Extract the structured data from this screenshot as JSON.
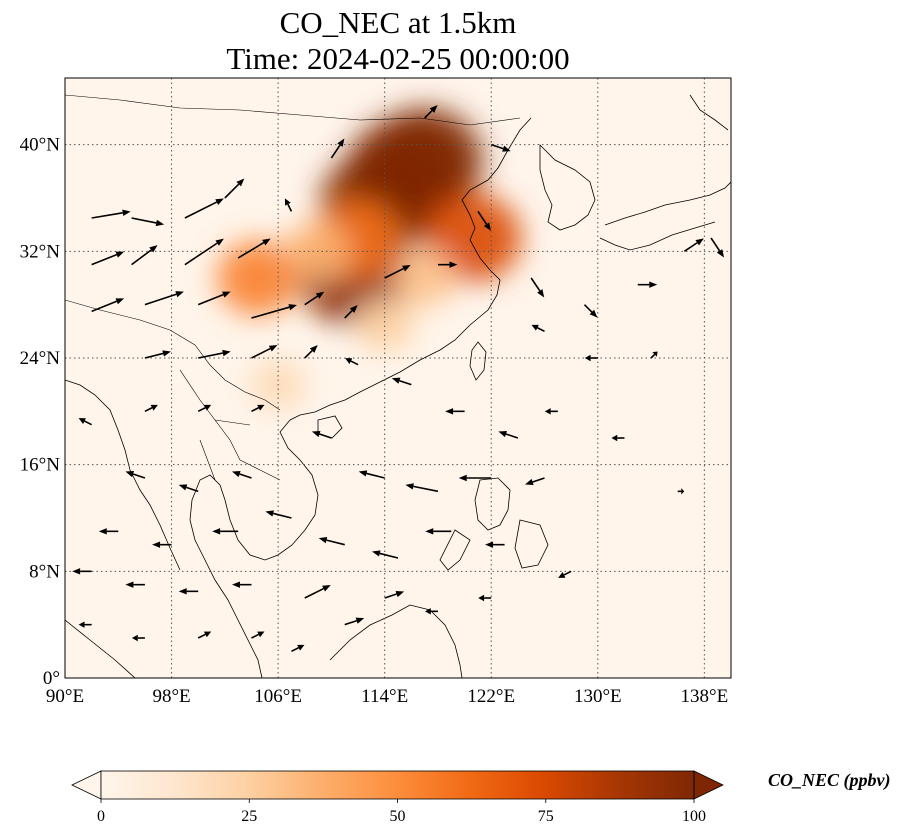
{
  "title": {
    "line1": "CO_NEC at 1.5km",
    "line2": "Time: 2024-02-25 00:00:00"
  },
  "map": {
    "projection": "PlateCarree",
    "lon_range": [
      90,
      140
    ],
    "lat_range": [
      0,
      45
    ],
    "x_ticks": [
      {
        "value": 90,
        "label": "90°E"
      },
      {
        "value": 98,
        "label": "98°E"
      },
      {
        "value": 106,
        "label": "106°E"
      },
      {
        "value": 114,
        "label": "114°E"
      },
      {
        "value": 122,
        "label": "122°E"
      },
      {
        "value": 130,
        "label": "130°E"
      },
      {
        "value": 138,
        "label": "138°E"
      }
    ],
    "y_ticks": [
      {
        "value": 0,
        "label": "0°"
      },
      {
        "value": 8,
        "label": "8°N"
      },
      {
        "value": 16,
        "label": "16°N"
      },
      {
        "value": 24,
        "label": "24°N"
      },
      {
        "value": 32,
        "label": "32°N"
      },
      {
        "value": 40,
        "label": "40°N"
      }
    ],
    "gridlines": "dotted",
    "field": "CO_NEC",
    "hotspots": [
      {
        "lon": 113.5,
        "lat": 35.5,
        "value": 100
      },
      {
        "lon": 115.5,
        "lat": 38.0,
        "value": 100
      },
      {
        "lon": 117.0,
        "lat": 38.8,
        "value": 100
      },
      {
        "lon": 111.7,
        "lat": 30.3,
        "value": 95
      },
      {
        "lon": 120.6,
        "lat": 33.0,
        "value": 75
      },
      {
        "lon": 104.5,
        "lat": 30.0,
        "value": 55
      },
      {
        "lon": 112.0,
        "lat": 33.0,
        "value": 60
      },
      {
        "lon": 109.0,
        "lat": 32.0,
        "value": 35
      },
      {
        "lon": 117.0,
        "lat": 30.0,
        "value": 30
      },
      {
        "lon": 114.0,
        "lat": 26.5,
        "value": 25
      },
      {
        "lon": 106.0,
        "lat": 22.0,
        "value": 20
      }
    ]
  },
  "colorbar": {
    "label": "CO_NEC (ppbv)",
    "min": 0,
    "max": 100,
    "extend": "both",
    "ticks": [
      {
        "value": 0,
        "label": "0"
      },
      {
        "value": 25,
        "label": "25"
      },
      {
        "value": 50,
        "label": "50"
      },
      {
        "value": 75,
        "label": "75"
      },
      {
        "value": 100,
        "label": "100"
      }
    ],
    "colormap": [
      "#fff5eb",
      "#fee6ce",
      "#fdd0a2",
      "#fdae6b",
      "#fd8d3c",
      "#f16913",
      "#d94801",
      "#a63603",
      "#7f2704"
    ]
  },
  "wind_vectors": [
    {
      "lon": 92,
      "lat": 34.5,
      "u": 6,
      "v": 1
    },
    {
      "lon": 95,
      "lat": 34.5,
      "u": 5,
      "v": -1
    },
    {
      "lon": 99,
      "lat": 34.5,
      "u": 6,
      "v": 3
    },
    {
      "lon": 102,
      "lat": 36,
      "u": 3,
      "v": 3
    },
    {
      "lon": 107,
      "lat": 35,
      "u": -1,
      "v": 2
    },
    {
      "lon": 92,
      "lat": 31,
      "u": 5,
      "v": 2
    },
    {
      "lon": 95,
      "lat": 31,
      "u": 4,
      "v": 3
    },
    {
      "lon": 99,
      "lat": 31,
      "u": 6,
      "v": 4
    },
    {
      "lon": 103,
      "lat": 31.5,
      "u": 5,
      "v": 3
    },
    {
      "lon": 92,
      "lat": 27.5,
      "u": 5,
      "v": 2
    },
    {
      "lon": 96,
      "lat": 28,
      "u": 6,
      "v": 2
    },
    {
      "lon": 100,
      "lat": 28,
      "u": 5,
      "v": 2
    },
    {
      "lon": 104,
      "lat": 27,
      "u": 7,
      "v": 2
    },
    {
      "lon": 108,
      "lat": 28,
      "u": 3,
      "v": 2
    },
    {
      "lon": 111,
      "lat": 27,
      "u": 2,
      "v": 2
    },
    {
      "lon": 114,
      "lat": 30,
      "u": 4,
      "v": 2
    },
    {
      "lon": 118,
      "lat": 31,
      "u": 3,
      "v": 0
    },
    {
      "lon": 121,
      "lat": 35,
      "u": 2,
      "v": -3
    },
    {
      "lon": 125,
      "lat": 30,
      "u": 2,
      "v": -3
    },
    {
      "lon": 129,
      "lat": 28,
      "u": 2,
      "v": -2
    },
    {
      "lon": 133,
      "lat": 29.5,
      "u": 3,
      "v": 0
    },
    {
      "lon": 136.5,
      "lat": 32,
      "u": 3,
      "v": 2
    },
    {
      "lon": 138.5,
      "lat": 33,
      "u": 2,
      "v": -3
    },
    {
      "lon": 117,
      "lat": 42,
      "u": 2,
      "v": 2
    },
    {
      "lon": 122,
      "lat": 40,
      "u": 3,
      "v": -1
    },
    {
      "lon": 110,
      "lat": 39,
      "u": 2,
      "v": 3
    },
    {
      "lon": 112,
      "lat": 23.5,
      "u": -2,
      "v": 1
    },
    {
      "lon": 116,
      "lat": 22,
      "u": -3,
      "v": 1
    },
    {
      "lon": 120,
      "lat": 20,
      "u": -3,
      "v": 0
    },
    {
      "lon": 124,
      "lat": 18,
      "u": -3,
      "v": 1
    },
    {
      "lon": 127,
      "lat": 20,
      "u": -2,
      "v": 0
    },
    {
      "lon": 110,
      "lat": 18,
      "u": -3,
      "v": 1
    },
    {
      "lon": 114,
      "lat": 15,
      "u": -4,
      "v": 1
    },
    {
      "lon": 118,
      "lat": 14,
      "u": -5,
      "v": 1
    },
    {
      "lon": 122,
      "lat": 15,
      "u": -5,
      "v": 0
    },
    {
      "lon": 126,
      "lat": 15,
      "u": -3,
      "v": -1
    },
    {
      "lon": 107,
      "lat": 12,
      "u": -4,
      "v": 1
    },
    {
      "lon": 111,
      "lat": 10,
      "u": -4,
      "v": 1
    },
    {
      "lon": 115,
      "lat": 9,
      "u": -4,
      "v": 1
    },
    {
      "lon": 119,
      "lat": 11,
      "u": -4,
      "v": 0
    },
    {
      "lon": 123,
      "lat": 10,
      "u": -3,
      "v": 0
    },
    {
      "lon": 103,
      "lat": 11,
      "u": -4,
      "v": 0
    },
    {
      "lon": 98,
      "lat": 10,
      "u": -3,
      "v": 0
    },
    {
      "lon": 94,
      "lat": 11,
      "u": -3,
      "v": 0
    },
    {
      "lon": 92,
      "lat": 8,
      "u": -3,
      "v": 0
    },
    {
      "lon": 96,
      "lat": 7,
      "u": -3,
      "v": 0
    },
    {
      "lon": 100,
      "lat": 6.5,
      "u": -3,
      "v": 0
    },
    {
      "lon": 104,
      "lat": 7,
      "u": -3,
      "v": 0
    },
    {
      "lon": 108,
      "lat": 6,
      "u": 4,
      "v": 2
    },
    {
      "lon": 111,
      "lat": 4,
      "u": 3,
      "v": 1
    },
    {
      "lon": 114,
      "lat": 6,
      "u": 3,
      "v": 1
    },
    {
      "lon": 100,
      "lat": 3,
      "u": 2,
      "v": 1
    },
    {
      "lon": 104,
      "lat": 3,
      "u": 2,
      "v": 1
    },
    {
      "lon": 92,
      "lat": 4,
      "u": -2,
      "v": 0
    },
    {
      "lon": 96,
      "lat": 3,
      "u": -2,
      "v": 0
    },
    {
      "lon": 107,
      "lat": 2,
      "u": 2,
      "v": 1
    },
    {
      "lon": 104,
      "lat": 15,
      "u": -3,
      "v": 1
    },
    {
      "lon": 100,
      "lat": 14,
      "u": -3,
      "v": 1
    },
    {
      "lon": 96,
      "lat": 15,
      "u": -3,
      "v": 1
    },
    {
      "lon": 92,
      "lat": 19,
      "u": -2,
      "v": 1
    },
    {
      "lon": 96,
      "lat": 20,
      "u": 2,
      "v": 1
    },
    {
      "lon": 100,
      "lat": 20,
      "u": 2,
      "v": 1
    },
    {
      "lon": 104,
      "lat": 20,
      "u": 2,
      "v": 1
    },
    {
      "lon": 96,
      "lat": 24,
      "u": 4,
      "v": 1
    },
    {
      "lon": 100,
      "lat": 24,
      "u": 5,
      "v": 1
    },
    {
      "lon": 104,
      "lat": 24,
      "u": 4,
      "v": 2
    },
    {
      "lon": 108,
      "lat": 24,
      "u": 2,
      "v": 2
    },
    {
      "lon": 130,
      "lat": 24,
      "u": -2,
      "v": 0
    },
    {
      "lon": 134,
      "lat": 24,
      "u": 1,
      "v": 1
    },
    {
      "lon": 132,
      "lat": 18,
      "u": -2,
      "v": 0
    },
    {
      "lon": 136,
      "lat": 14,
      "u": 1,
      "v": 0
    },
    {
      "lon": 128,
      "lat": 8,
      "u": -2,
      "v": -1
    },
    {
      "lon": 122,
      "lat": 6,
      "u": -2,
      "v": 0
    },
    {
      "lon": 118,
      "lat": 5,
      "u": -2,
      "v": 0
    },
    {
      "lon": 126,
      "lat": 26,
      "u": -2,
      "v": 1
    }
  ]
}
